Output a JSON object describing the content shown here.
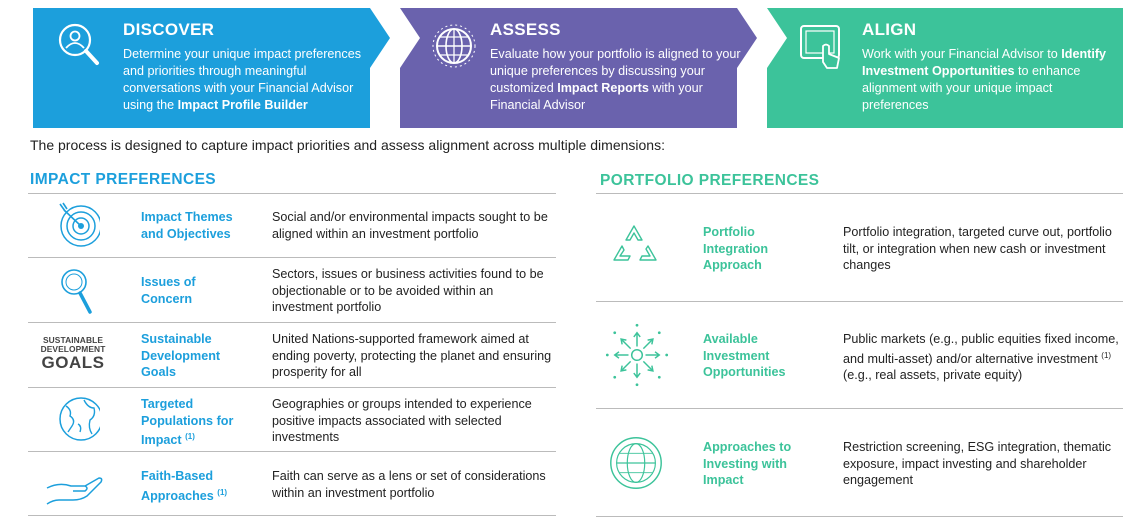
{
  "banner": {
    "discover": {
      "title": "DISCOVER",
      "desc_pre": "Determine your unique impact preferences and priorities through meaningful conversations with your Financial Advisor using the ",
      "desc_bold": "Impact Profile Builder",
      "desc_post": "",
      "icon": "person-search-icon",
      "color": "#1c9fdc"
    },
    "assess": {
      "title": "ASSESS",
      "desc_pre": "Evaluate how your portfolio is aligned to your unique preferences by discussing your customized ",
      "desc_bold": "Impact Reports",
      "desc_post": " with your Financial Advisor",
      "icon": "globe-icon",
      "color": "#6a62ad"
    },
    "align": {
      "title": "ALIGN",
      "desc_pre": "Work with your Financial Advisor to ",
      "desc_bold": "Identify Investment Opportunities",
      "desc_post": " to enhance alignment with your unique impact preferences",
      "icon": "tablet-touch-icon",
      "color": "#3cc39a"
    }
  },
  "intro": "The process is designed to capture impact priorities and assess alignment across multiple dimensions:",
  "impact": {
    "title": "IMPACT PREFERENCES",
    "rows": [
      {
        "label": "Impact Themes and Objectives",
        "sup": "",
        "text": "Social and/or environmental impacts sought to be aligned within an investment portfolio",
        "icon": "target-icon"
      },
      {
        "label": "Issues of Concern",
        "sup": "",
        "text": "Sectors, issues or business activities found to be objectionable or to be avoided within an investment portfolio",
        "icon": "magnifier-icon"
      },
      {
        "label": "Sustainable Development Goals",
        "sup": "",
        "text": "United Nations-supported framework aimed at ending poverty, protecting the planet and ensuring prosperity for all",
        "icon": "sdg-logo",
        "logo_small_1": "SUSTAINABLE",
        "logo_small_2": "DEVELOPMENT",
        "logo_big": "GOALS"
      },
      {
        "label": "Targeted Populations for Impact",
        "sup": "(1)",
        "text": "Geographies or groups intended to experience positive impacts associated with selected investments",
        "icon": "earth-icon"
      },
      {
        "label": "Faith-Based Approaches",
        "sup": "(1)",
        "text": "Faith can serve as a lens or set of considerations within an investment portfolio",
        "icon": "open-hand-icon"
      }
    ]
  },
  "portfolio": {
    "title": "PORTFOLIO PREFERENCES",
    "rows": [
      {
        "label": "Portfolio Integration Approach",
        "text": "Portfolio integration, targeted curve out, portfolio tilt, or integration when new cash or investment changes",
        "icon": "recycle-arrows-icon"
      },
      {
        "label": "Available Investment Opportunities",
        "text_pre": "Public markets (e.g., public equities fixed income, and multi-asset) and/or alternative investment ",
        "sup": "(1)",
        "text_post": " (e.g., real assets, private equity)",
        "icon": "radiating-arrows-icon"
      },
      {
        "label": "Approaches to Investing with Impact",
        "text": "Restriction screening, ESG integration, thematic exposure, impact investing and shareholder engagement",
        "icon": "globe-ring-icon"
      }
    ]
  }
}
